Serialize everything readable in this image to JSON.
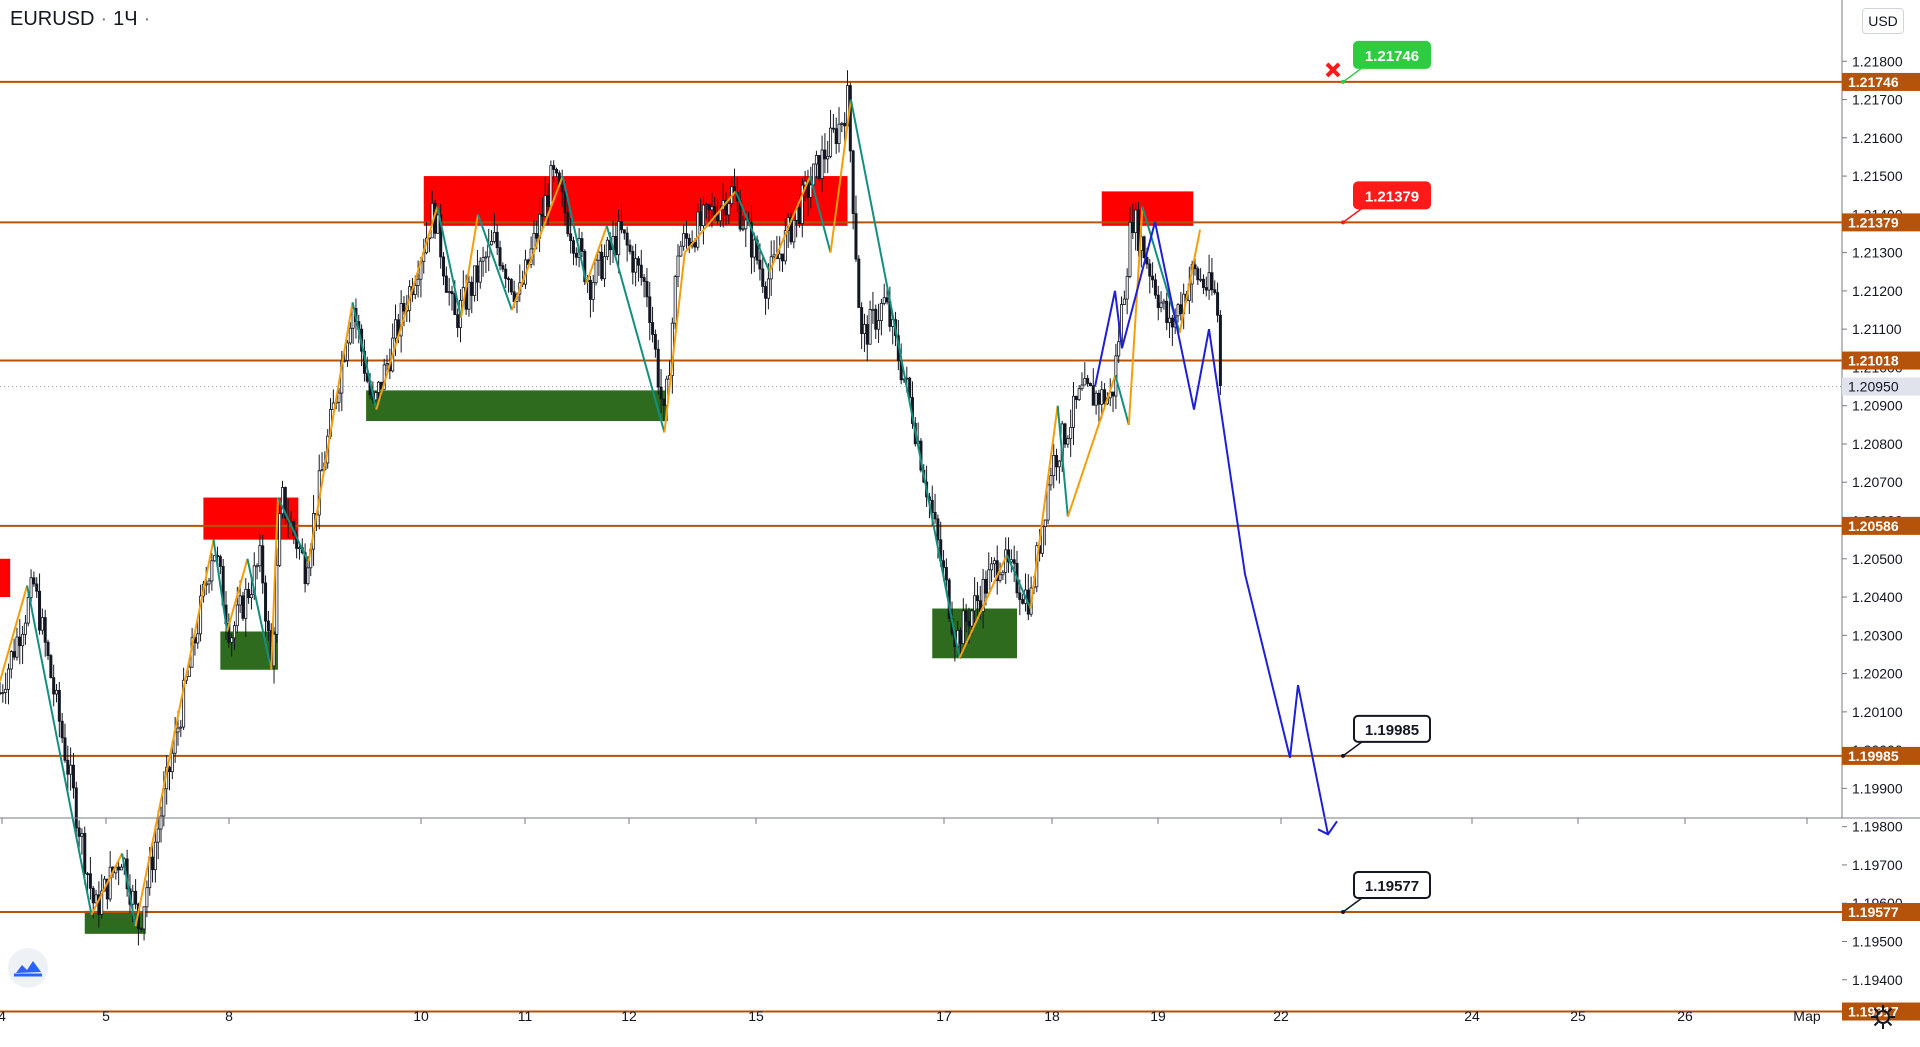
{
  "header": {
    "symbol": "EURUSD",
    "timeframe": "1Ч"
  },
  "currency": "USD",
  "icons": {
    "logo": "tradingview-logo-icon",
    "settings": "gear-icon",
    "stop": "red-cross-icon"
  },
  "colors": {
    "up": "#131722",
    "down": "#131722",
    "line": "#b45309",
    "zigzag_up": "#f59e0b",
    "zigzag_down": "#138f80",
    "supply": "#ff0000",
    "demand": "#2e6b1e",
    "forecast": "#1f1fd6"
  },
  "chart_data": {
    "type": "candlestick",
    "symbol": "EURUSD",
    "ylim": [
      1.19265,
      1.21985
    ],
    "x_ticks": [
      "4",
      "5",
      "8",
      "10",
      "11",
      "12",
      "15",
      "17",
      "18",
      "19",
      "22",
      "24",
      "25",
      "26",
      "Мар"
    ],
    "y_ticks": [
      "1.21800",
      "1.21700",
      "1.21600",
      "1.21500",
      "1.21400",
      "1.21300",
      "1.21200",
      "1.21100",
      "1.21000",
      "1.20900",
      "1.20800",
      "1.20700",
      "1.20600",
      "1.20500",
      "1.20400",
      "1.20300",
      "1.20200",
      "1.20100",
      "1.20000",
      "1.19900",
      "1.19800",
      "1.19700",
      "1.19600",
      "1.19500",
      "1.19400"
    ],
    "levels": [
      {
        "value": "1.21746",
        "price": 1.21746,
        "callout": "1.21746",
        "callout_style": "green"
      },
      {
        "value": "1.21379",
        "price": 1.21379,
        "callout": "1.21379",
        "callout_style": "red"
      },
      {
        "value": "1.21018",
        "price": 1.21018
      },
      {
        "value": "1.20586",
        "price": 1.20586
      },
      {
        "value": "1.19985",
        "price": 1.19985,
        "callout": "1.19985",
        "callout_style": "black"
      },
      {
        "value": "1.19577",
        "price": 1.19577,
        "callout": "1.19577",
        "callout_style": "black"
      },
      {
        "value": "1.19317",
        "price": 1.19317
      }
    ],
    "current_price": {
      "value": "1.20950",
      "price": 1.2095
    },
    "forecast_path": [
      1.2095,
      1.212,
      1.2105,
      1.2138,
      1.2089,
      1.211,
      1.2046,
      1.1998,
      1.2017,
      1.1978
    ],
    "supply_zones": [
      {
        "from": -0.5,
        "to": 0.3,
        "low": 1.204,
        "high": 1.205
      },
      {
        "from": 6.0,
        "to": 8.8,
        "low": 1.2055,
        "high": 1.2066
      },
      {
        "from": 12.5,
        "to": 25.0,
        "low": 1.2137,
        "high": 1.215
      },
      {
        "from": 32.5,
        "to": 35.2,
        "low": 1.2137,
        "high": 1.2146
      }
    ],
    "demand_zones": [
      {
        "from": 2.5,
        "to": 4.3,
        "low": 1.1952,
        "high": 1.1958
      },
      {
        "from": 6.5,
        "to": 8.2,
        "low": 1.2021,
        "high": 1.2031
      },
      {
        "from": 10.8,
        "to": 19.7,
        "low": 1.2086,
        "high": 1.2094
      },
      {
        "from": 27.5,
        "to": 30.0,
        "low": 1.2024,
        "high": 1.2037
      }
    ],
    "anchors": [
      [
        0,
        1.2015
      ],
      [
        1,
        1.2043
      ],
      [
        2.8,
        1.1958
      ],
      [
        3.6,
        1.1973
      ],
      [
        4.1,
        1.1954
      ],
      [
        6.3,
        1.2054
      ],
      [
        6.8,
        1.203
      ],
      [
        7.7,
        1.205
      ],
      [
        8.0,
        1.2021
      ],
      [
        8.3,
        1.2066
      ],
      [
        9.0,
        1.2048
      ],
      [
        10.4,
        1.2117
      ],
      [
        11.0,
        1.2089
      ],
      [
        12.8,
        1.2141
      ],
      [
        13.4,
        1.2112
      ],
      [
        14.6,
        1.2133
      ],
      [
        15.3,
        1.2118
      ],
      [
        16.3,
        1.215
      ],
      [
        17.4,
        1.2122
      ],
      [
        18.3,
        1.2135
      ],
      [
        19.1,
        1.212
      ],
      [
        19.6,
        1.2085
      ],
      [
        20.0,
        1.2131
      ],
      [
        21.6,
        1.2146
      ],
      [
        22.6,
        1.2122
      ],
      [
        24.0,
        1.215
      ],
      [
        24.8,
        1.2164
      ],
      [
        25.0,
        1.217
      ],
      [
        25.4,
        1.2107
      ],
      [
        26.1,
        1.2117
      ],
      [
        26.9,
        1.2089
      ],
      [
        28.2,
        1.2029
      ],
      [
        29.5,
        1.205
      ],
      [
        30.4,
        1.2039
      ],
      [
        31.0,
        1.2074
      ],
      [
        31.9,
        1.2093
      ],
      [
        32.8,
        1.2092
      ],
      [
        33.4,
        1.214
      ],
      [
        34.5,
        1.211
      ],
      [
        35.2,
        1.2125
      ],
      [
        35.9,
        1.2118
      ],
      [
        36.0,
        1.2095
      ]
    ],
    "zigzag": [
      [
        0,
        1.2018
      ],
      [
        0.8,
        1.2043
      ],
      [
        2.7,
        1.1957
      ],
      [
        3.6,
        1.1973
      ],
      [
        4.0,
        1.1954
      ],
      [
        6.3,
        1.2055
      ],
      [
        6.7,
        1.2031
      ],
      [
        7.3,
        1.205
      ],
      [
        8.0,
        1.2021
      ],
      [
        8.2,
        1.2066
      ],
      [
        9.1,
        1.2049
      ],
      [
        10.4,
        1.2117
      ],
      [
        11.1,
        1.2089
      ],
      [
        12.9,
        1.2142
      ],
      [
        13.6,
        1.2113
      ],
      [
        14.1,
        1.214
      ],
      [
        15.1,
        1.2115
      ],
      [
        16.6,
        1.215
      ],
      [
        17.3,
        1.2122
      ],
      [
        17.9,
        1.2137
      ],
      [
        19.6,
        1.2083
      ],
      [
        20.2,
        1.213
      ],
      [
        21.7,
        1.2146
      ],
      [
        22.7,
        1.2125
      ],
      [
        23.9,
        1.215
      ],
      [
        24.5,
        1.213
      ],
      [
        25.1,
        1.217
      ],
      [
        28.3,
        1.2024
      ],
      [
        29.7,
        1.2051
      ],
      [
        30.4,
        1.2037
      ],
      [
        31.2,
        1.209
      ],
      [
        31.5,
        1.2061
      ],
      [
        32.9,
        1.2098
      ],
      [
        33.3,
        1.2085
      ],
      [
        33.7,
        1.2142
      ],
      [
        34.8,
        1.2109
      ],
      [
        35.4,
        1.2136
      ]
    ]
  }
}
